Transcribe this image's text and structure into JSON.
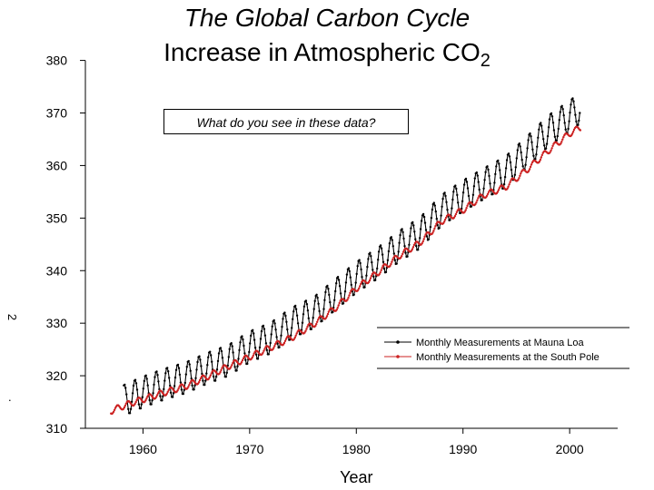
{
  "title": "The Global Carbon Cycle",
  "subtitle_prefix": "Increase in Atmospheric CO",
  "subtitle_subscript": "2",
  "annotation": "What do you see in these data?",
  "ylabel_fragment": "2",
  "ylabel_fragment_dot": ".",
  "chart_data": {
    "type": "line",
    "xlabel": "Year",
    "ylabel": "",
    "xlim": [
      1954.6,
      2004.5
    ],
    "ylim": [
      310,
      382
    ],
    "xticks": [
      1960,
      1970,
      1980,
      1990,
      2000
    ],
    "yticks": [
      310,
      320,
      330,
      340,
      350,
      360,
      370,
      380
    ],
    "legend": "right-lower",
    "series": [
      {
        "name": "Monthly Measurements at Mauna Loa",
        "color": "#000000",
        "marker": "dot",
        "seasonal_amplitude_ppm": 6,
        "x": [
          1958.2,
          1960,
          1962,
          1964,
          1966,
          1968,
          1970,
          1972,
          1974,
          1976,
          1978,
          1980,
          1982,
          1984,
          1986,
          1988,
          1990,
          1992,
          1994,
          1996,
          1998,
          2000,
          2001
        ],
        "values": [
          315.3,
          316.9,
          318.4,
          319.6,
          321.4,
          322.9,
          325.5,
          327.2,
          330.1,
          332.0,
          335.4,
          338.7,
          341.4,
          344.6,
          347.2,
          351.5,
          354.2,
          356.6,
          358.8,
          362.6,
          366.6,
          369.4,
          371.0
        ]
      },
      {
        "name": "Monthly Measurements at the South Pole",
        "color": "#cc2222",
        "marker": "dot",
        "seasonal_amplitude_ppm": 1.2,
        "x": [
          1957,
          1958.5,
          1960,
          1962,
          1964,
          1966,
          1968,
          1970,
          1972,
          1974,
          1976,
          1978,
          1980,
          1982,
          1984,
          1986,
          1988,
          1990,
          1992,
          1994,
          1996,
          1998,
          2000,
          2001
        ],
        "values": [
          313.3,
          314.5,
          315.5,
          316.8,
          318.0,
          319.8,
          321.8,
          323.6,
          325.4,
          327.3,
          329.8,
          332.8,
          336.6,
          339.6,
          342.8,
          345.4,
          349.4,
          351.5,
          354.4,
          355.9,
          359.2,
          362.8,
          366.1,
          367.2
        ]
      }
    ]
  }
}
